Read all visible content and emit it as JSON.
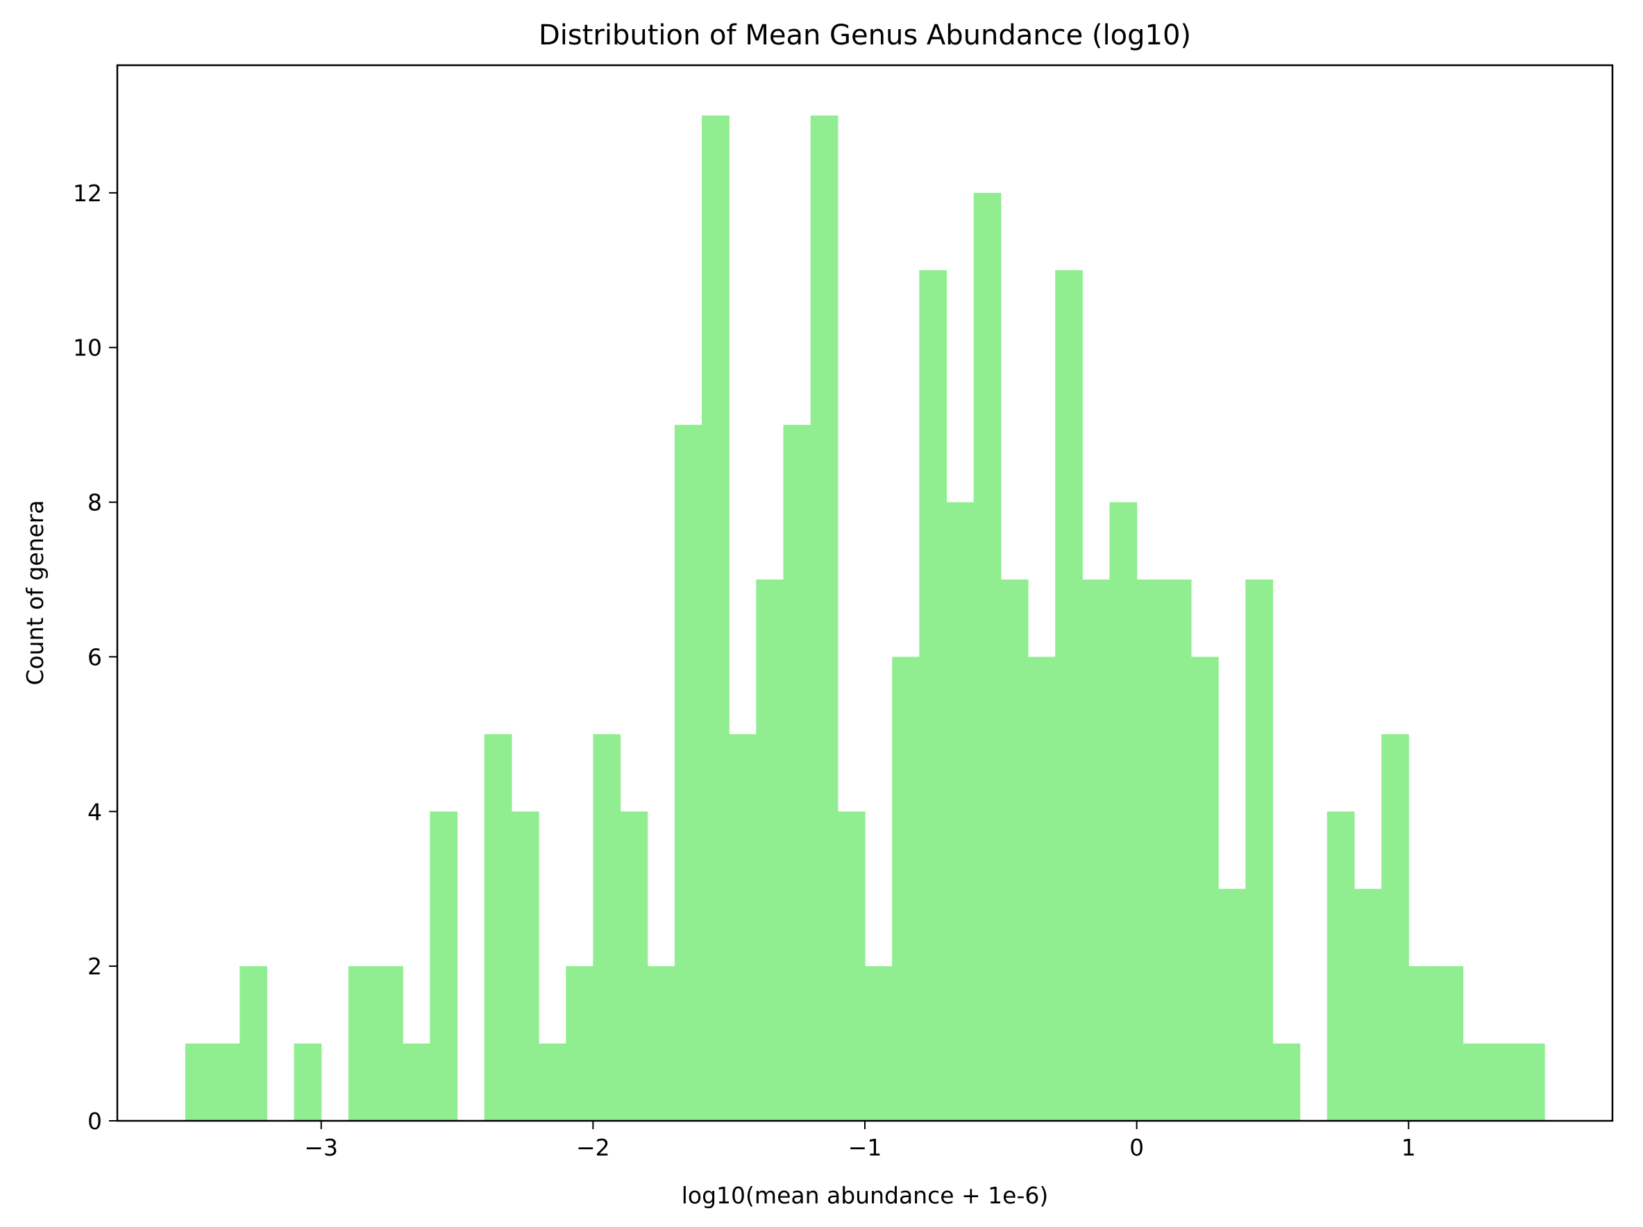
{
  "chart_data": {
    "type": "bar",
    "title": "Distribution of Mean Genus Abundance (log10)",
    "xlabel": "log10(mean abundance + 1e-6)",
    "ylabel": "Count of genera",
    "xlim": [
      -3.75,
      1.75
    ],
    "ylim": [
      0,
      13.65
    ],
    "x_ticks": [
      -3,
      -2,
      -1,
      0,
      1
    ],
    "x_tick_labels": [
      "−3",
      "−2",
      "−1",
      "0",
      "1"
    ],
    "y_ticks": [
      0,
      2,
      4,
      6,
      8,
      10,
      12
    ],
    "y_tick_labels": [
      "0",
      "2",
      "4",
      "6",
      "8",
      "10",
      "12"
    ],
    "bin_start": -3.5,
    "bin_width": 0.1,
    "counts": [
      1,
      1,
      2,
      0,
      1,
      0,
      2,
      2,
      1,
      4,
      0,
      5,
      4,
      1,
      2,
      5,
      4,
      2,
      9,
      13,
      5,
      7,
      9,
      13,
      4,
      2,
      6,
      11,
      8,
      12,
      7,
      6,
      11,
      7,
      8,
      7,
      7,
      6,
      3,
      7,
      1,
      0,
      4,
      3,
      5,
      2,
      2,
      1,
      1,
      1
    ],
    "grid": false,
    "bar_color": "#90ee90"
  }
}
